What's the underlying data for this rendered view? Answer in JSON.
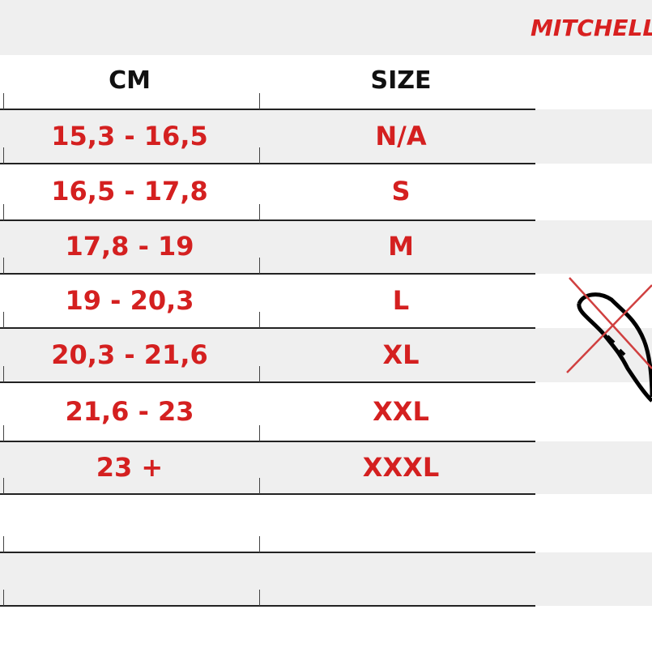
{
  "brand": "MITCHELL",
  "headers": {
    "cm": "CM",
    "size": "SIZE"
  },
  "rows": [
    {
      "cm": "15,3 - 16,5",
      "size": "N/A"
    },
    {
      "cm": "16,5 - 17,8",
      "size": "S"
    },
    {
      "cm": "17,8 - 19",
      "size": "M"
    },
    {
      "cm": "19 - 20,3",
      "size": "L"
    },
    {
      "cm": "20,3 - 21,6",
      "size": "XL"
    },
    {
      "cm": "21,6 - 23",
      "size": "XXL"
    },
    {
      "cm": "23 +",
      "size": "XXXL"
    },
    {
      "cm": "",
      "size": ""
    },
    {
      "cm": "",
      "size": ""
    }
  ],
  "colors": {
    "accent": "#d42020",
    "band": "#efefef"
  },
  "icons": {
    "illustration": "crossed-out-hand-icon"
  }
}
